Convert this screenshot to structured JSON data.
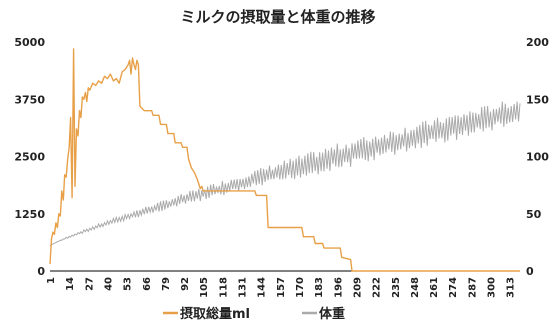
{
  "chart_data": {
    "type": "line",
    "title": "ミルクの摂取量と体重の推移",
    "xlabel": "",
    "y_left": {
      "ticks": [
        0,
        1250,
        2500,
        3750,
        5000
      ],
      "lim": [
        0,
        5000
      ]
    },
    "y_right": {
      "ticks": [
        0,
        50,
        100,
        150,
        200
      ],
      "lim": [
        0,
        200
      ]
    },
    "x_ticks": [
      1,
      14,
      27,
      40,
      53,
      66,
      79,
      92,
      105,
      118,
      131,
      144,
      157,
      170,
      183,
      196,
      209,
      222,
      235,
      248,
      261,
      274,
      287,
      300,
      313
    ],
    "xlim": [
      1,
      320
    ],
    "series": [
      {
        "name": "摂取総量ml",
        "axis": "left",
        "color": "#e8a048",
        "points": [
          [
            1,
            150
          ],
          [
            2,
            700
          ],
          [
            3,
            850
          ],
          [
            4,
            800
          ],
          [
            5,
            1050
          ],
          [
            6,
            950
          ],
          [
            7,
            1250
          ],
          [
            8,
            1200
          ],
          [
            9,
            1750
          ],
          [
            10,
            1550
          ],
          [
            11,
            2100
          ],
          [
            12,
            2050
          ],
          [
            13,
            2450
          ],
          [
            14,
            2700
          ],
          [
            15,
            3350
          ],
          [
            16,
            1600
          ],
          [
            17,
            4850
          ],
          [
            18,
            1850
          ],
          [
            19,
            3100
          ],
          [
            20,
            2950
          ],
          [
            21,
            3500
          ],
          [
            22,
            3350
          ],
          [
            23,
            3800
          ],
          [
            24,
            3750
          ],
          [
            25,
            3900
          ],
          [
            26,
            3700
          ],
          [
            27,
            4000
          ],
          [
            28,
            3950
          ],
          [
            30,
            4100
          ],
          [
            32,
            4050
          ],
          [
            34,
            4150
          ],
          [
            36,
            4100
          ],
          [
            38,
            4250
          ],
          [
            40,
            4200
          ],
          [
            42,
            4300
          ],
          [
            44,
            4150
          ],
          [
            46,
            4200
          ],
          [
            48,
            4100
          ],
          [
            50,
            4350
          ],
          [
            52,
            4400
          ],
          [
            54,
            4500
          ],
          [
            55,
            4600
          ],
          [
            56,
            4300
          ],
          [
            57,
            4650
          ],
          [
            58,
            4500
          ],
          [
            59,
            4400
          ],
          [
            60,
            4600
          ],
          [
            61,
            4500
          ],
          [
            62,
            3600
          ],
          [
            65,
            3500
          ],
          [
            70,
            3500
          ],
          [
            71,
            3400
          ],
          [
            75,
            3400
          ],
          [
            76,
            3200
          ],
          [
            80,
            3200
          ],
          [
            81,
            3000
          ],
          [
            85,
            3000
          ],
          [
            86,
            2800
          ],
          [
            90,
            2800
          ],
          [
            91,
            2700
          ],
          [
            94,
            2700
          ],
          [
            95,
            2450
          ],
          [
            97,
            2250
          ],
          [
            99,
            2150
          ],
          [
            101,
            2000
          ],
          [
            103,
            1800
          ],
          [
            104,
            1850
          ],
          [
            105,
            1750
          ],
          [
            140,
            1750
          ],
          [
            141,
            1650
          ],
          [
            148,
            1650
          ],
          [
            149,
            950
          ],
          [
            172,
            950
          ],
          [
            173,
            750
          ],
          [
            180,
            750
          ],
          [
            181,
            600
          ],
          [
            186,
            600
          ],
          [
            187,
            500
          ],
          [
            198,
            500
          ],
          [
            199,
            300
          ],
          [
            205,
            250
          ],
          [
            206,
            0
          ],
          [
            320,
            0
          ]
        ]
      },
      {
        "name": "体重",
        "axis": "right",
        "color": "#aaaaaa",
        "start": [
          1,
          22
        ],
        "end": [
          320,
          140
        ],
        "oscillation_amplitude": 12
      }
    ],
    "legend": {
      "position": "bottom-center",
      "entries": [
        "摂取総量ml",
        "体重"
      ]
    },
    "grid": false
  }
}
